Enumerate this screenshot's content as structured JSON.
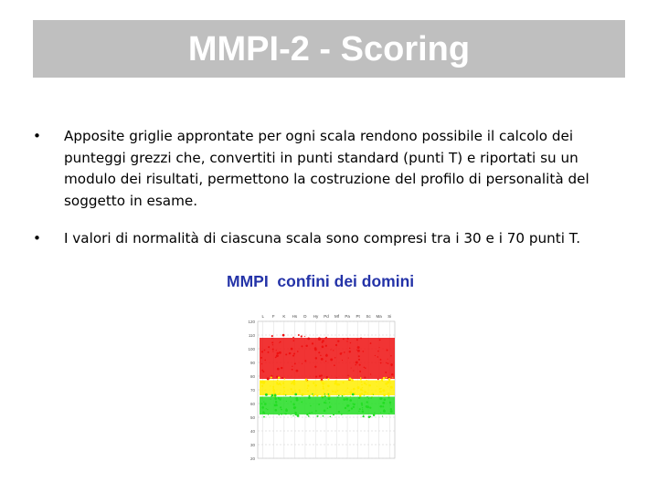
{
  "slide": {
    "title": "MMPI-2 - Scoring",
    "bullets": [
      "Apposite griglie approntate per ogni scala rendono possibile il calcolo dei punteggi grezzi che, convertiti in punti standard (punti T) e riportati su un modulo dei risultati, permettono la costruzione del profilo di personalità del soggetto in esame.",
      "I valori di normalità di ciascuna scala sono compresi tra i 30 e i 70 punti T."
    ],
    "bullet_symbol": "•"
  },
  "figure": {
    "title": "MMPI  confini dei domini",
    "columns": [
      "L",
      "F",
      "K",
      "Hs",
      "D",
      "Hy",
      "Pd",
      "Mf",
      "Pa",
      "Pt",
      "Sc",
      "Ma",
      "Si"
    ],
    "t_ticks": [
      "120",
      "110",
      "100",
      "90",
      "80",
      "70",
      "60",
      "50",
      "40",
      "30",
      "20"
    ],
    "bands": [
      {
        "zone": "red",
        "color": "#ee1111",
        "from_t": 78,
        "to_t": 108
      },
      {
        "zone": "yellow",
        "color": "#ffee00",
        "from_t": 66,
        "to_t": 77
      },
      {
        "zone": "green",
        "color": "#22dd22",
        "from_t": 52,
        "to_t": 65
      }
    ]
  }
}
